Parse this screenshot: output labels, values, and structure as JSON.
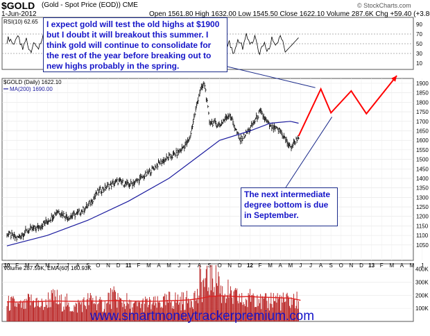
{
  "header": {
    "symbol": "$GOLD",
    "name": "(Gold - Spot Price (EOD))",
    "exchange": "CME",
    "date": "1-Jun-2012",
    "ohlc": "Open 1561.80  High 1632.00  Low 1545.50  Close 1622.10  Volume 287.6K  Chg +59.40 (+3.80%)",
    "credit": "© StockCharts.com"
  },
  "annotations": {
    "top_note": "I expect gold will test the old highs at $1900 but I doubt it will breakout this summer. I think gold will continue to consolidate for the rest of the year before breaking out to new highs probably in the spring.",
    "bottom_note": "The next intermediate degree bottom is due in September.",
    "watermark": "www.smartmoneytrackerpremium.com"
  },
  "colors": {
    "price_bars": "#000000",
    "ma200": "#1a1a9e",
    "projection": "#ff0000",
    "volume_bars": "#b41414",
    "volume_ema": "#e02020",
    "rsi_line": "#000000",
    "annotation_text": "#1515c8"
  },
  "chart_data": [
    {
      "panel": "rsi",
      "type": "line",
      "label": "RSI(10) 62.65",
      "y_ticks": [
        10,
        30,
        50,
        70,
        90
      ],
      "reference_lines": [
        30,
        50,
        70
      ]
    },
    {
      "panel": "price",
      "type": "line",
      "series_labels": [
        "$GOLD (Daily) 1622.10",
        "MA(200) 1690.00"
      ],
      "y_ticks": [
        1050,
        1100,
        1150,
        1200,
        1250,
        1300,
        1350,
        1400,
        1450,
        1500,
        1550,
        1600,
        1650,
        1700,
        1750,
        1800,
        1850,
        1900
      ],
      "ylim": [
        1020,
        1940
      ],
      "x_labels": [
        "10",
        "F",
        "M",
        "A",
        "M",
        "J",
        "J",
        "A",
        "S",
        "O",
        "N",
        "D",
        "11",
        "F",
        "M",
        "A",
        "M",
        "J",
        "J",
        "A",
        "S",
        "O",
        "N",
        "D",
        "12",
        "F",
        "M",
        "A",
        "M",
        "J",
        "J",
        "A",
        "S",
        "O",
        "N",
        "D",
        "13",
        "F",
        "M",
        "A",
        "M",
        "J",
        "J",
        "A",
        "S",
        "O"
      ],
      "price_path": [
        [
          0,
          1110
        ],
        [
          1,
          1085
        ],
        [
          2,
          1125
        ],
        [
          3,
          1140
        ],
        [
          4,
          1175
        ],
        [
          5,
          1230
        ],
        [
          6,
          1195
        ],
        [
          7,
          1215
        ],
        [
          8,
          1255
        ],
        [
          9,
          1330
        ],
        [
          10,
          1360
        ],
        [
          11,
          1385
        ],
        [
          12,
          1365
        ],
        [
          13,
          1390
        ],
        [
          14,
          1430
        ],
        [
          15,
          1480
        ],
        [
          16,
          1510
        ],
        [
          17,
          1540
        ],
        [
          18,
          1600
        ],
        [
          19,
          1850
        ],
        [
          19.5,
          1900
        ],
        [
          20,
          1700
        ],
        [
          21,
          1680
        ],
        [
          22,
          1740
        ],
        [
          23,
          1600
        ],
        [
          24,
          1660
        ],
        [
          25,
          1750
        ],
        [
          26,
          1670
        ],
        [
          27,
          1650
        ],
        [
          28,
          1560
        ],
        [
          28.8,
          1622
        ]
      ],
      "ma200_path": [
        [
          0,
          1045
        ],
        [
          4,
          1100
        ],
        [
          8,
          1180
        ],
        [
          12,
          1280
        ],
        [
          16,
          1400
        ],
        [
          19,
          1520
        ],
        [
          21,
          1600
        ],
        [
          24,
          1650
        ],
        [
          26,
          1690
        ],
        [
          28,
          1700
        ],
        [
          28.8,
          1690
        ]
      ],
      "projection_path": [
        [
          28.8,
          1622
        ],
        [
          31,
          1870
        ],
        [
          32,
          1745
        ],
        [
          34,
          1860
        ],
        [
          35.5,
          1740
        ],
        [
          38.5,
          1940
        ]
      ],
      "pointer_from_top_note": [
        31,
        1870
      ],
      "pointer_from_bottom_note": [
        32.1,
        1745
      ]
    },
    {
      "panel": "volume",
      "type": "bar",
      "label": "Volume 287.59K, EMA(60) 160.93K",
      "y_ticks": [
        "400K",
        "300K",
        "200K",
        "100K"
      ],
      "ylim": [
        0,
        440
      ],
      "volume_k": [
        150,
        130,
        170,
        140,
        190,
        160,
        120,
        150,
        175,
        140,
        200,
        165,
        130,
        150,
        145,
        160,
        180,
        175,
        210,
        320,
        380,
        250,
        200,
        170,
        230,
        160,
        190,
        170,
        175,
        287.59
      ],
      "ema_k": [
        150,
        148,
        150,
        151,
        155,
        156,
        154,
        153,
        156,
        155,
        158,
        159,
        156,
        155,
        154,
        155,
        158,
        160,
        165,
        175,
        190,
        195,
        193,
        188,
        190,
        185,
        184,
        180,
        178,
        160.93
      ]
    }
  ]
}
